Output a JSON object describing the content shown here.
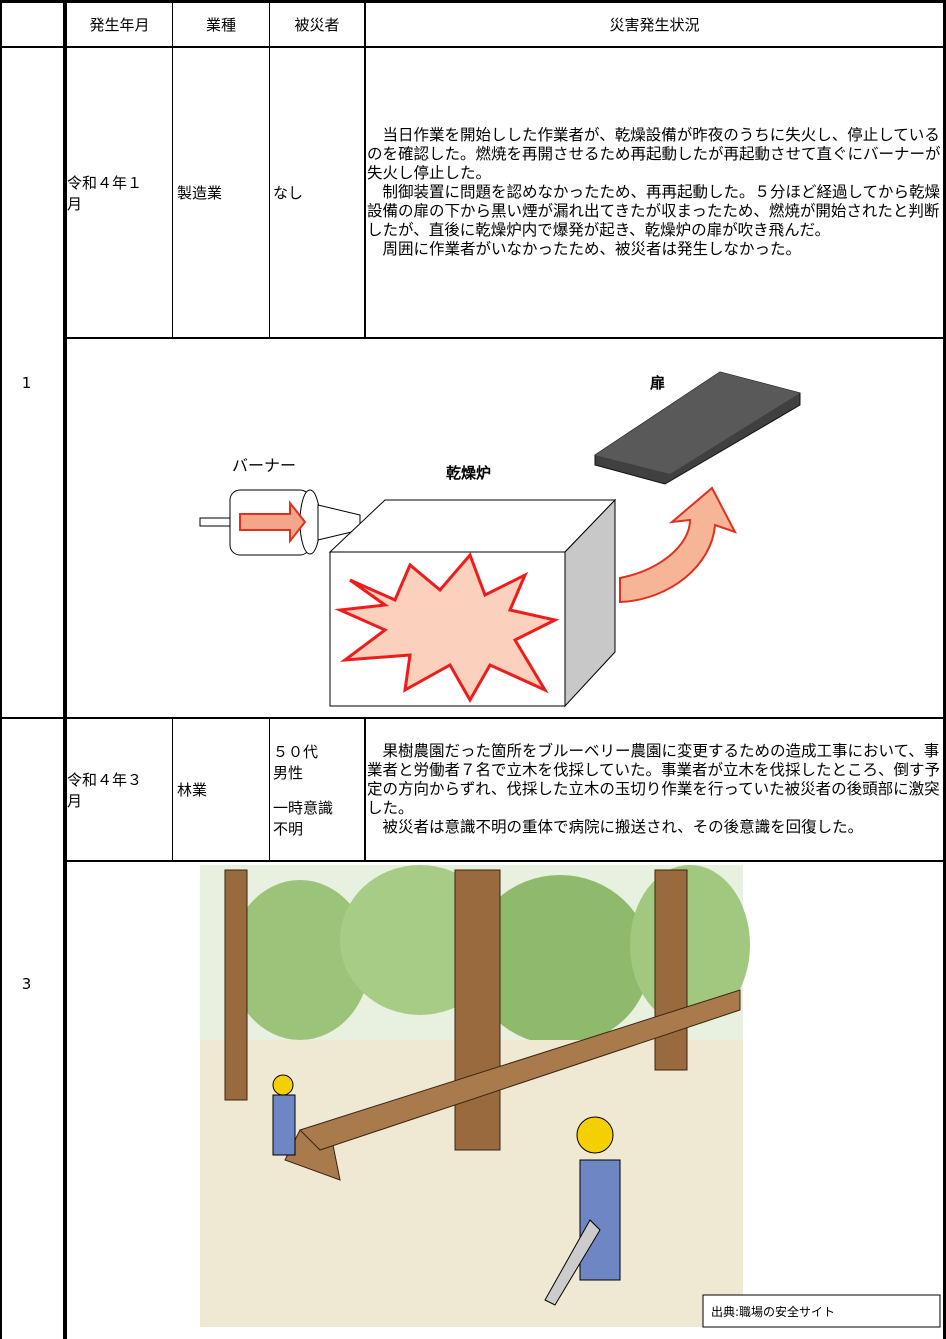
{
  "header": {
    "columns": [
      "発生年月",
      "業種",
      "被災者",
      "災害発生状況"
    ]
  },
  "rows": [
    {
      "no": "1",
      "date": "令和４年１月",
      "industry": "製造業",
      "victim": [
        "なし"
      ],
      "description": [
        "　当日作業を開始しした作業者が、乾燥設備が昨夜のうちに失火し、停止しているのを確認した。燃焼を再開させるため再起動したが再起動させて直ぐにバーナーが失火し停止した。",
        "　制御装置に問題を認めなかったため、再再起動した。５分ほど経過してから乾燥設備の扉の下から黒い煙が漏れ出てきたが収まったため、燃焼が開始されたと判断したが、直後に乾燥炉内で爆発が起き、乾燥炉の扉が吹き飛んだ。",
        "　周囲に作業者がいなかったため、被災者は発生しなかった。"
      ],
      "figure": {
        "door": "扉",
        "burner": "バーナー",
        "furnace": "乾燥炉"
      }
    },
    {
      "no": "3",
      "date": "令和４年３月",
      "industry": "林業",
      "victim": [
        "５０代",
        "男性",
        "一時意識不明"
      ],
      "description": [
        "　果樹農園だった箇所をブルーベリー農園に変更するための造成工事において、事業者と労働者７名で立木を伐採していた。事業者が立木を伐採したところ、倒す予定の方向からずれ、伐採した立木の玉切り作業を行っていた被災者の後頭部に激突した。",
        "　被災者は意識不明の重体で病院に搬送され、その後意識を回復した。"
      ],
      "credit": "出典:職場の安全サイト"
    }
  ]
}
